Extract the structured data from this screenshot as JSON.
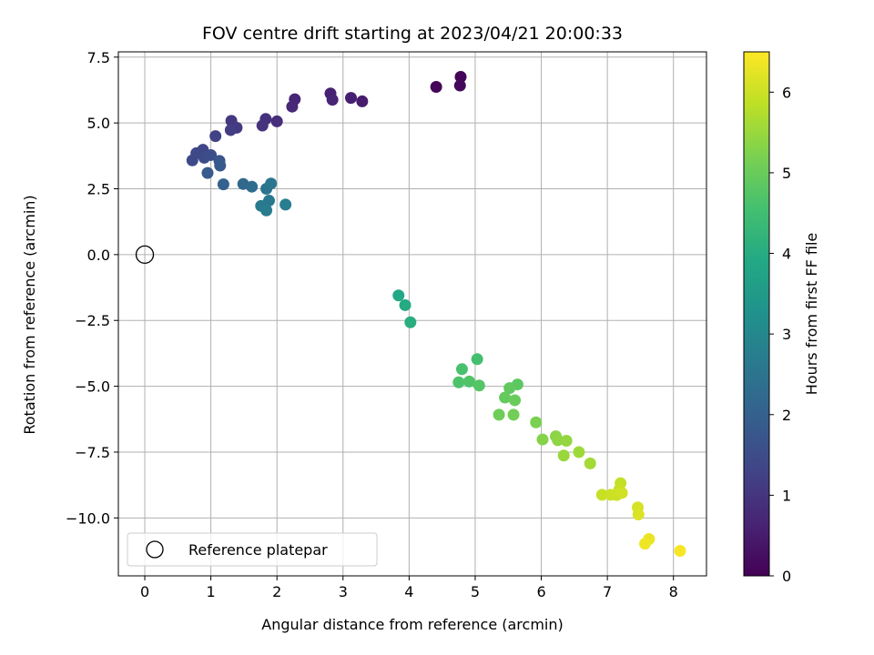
{
  "chart_data": {
    "type": "scatter",
    "title": "FOV centre drift starting at 2023/04/21 20:00:33",
    "xlabel": "Angular distance from reference (arcmin)",
    "ylabel": "Rotation from reference (arcmin)",
    "xlim": [
      -0.4,
      8.5
    ],
    "ylim": [
      -12.2,
      7.7
    ],
    "xticks": [
      0,
      1,
      2,
      3,
      4,
      5,
      6,
      7,
      8
    ],
    "yticks": [
      7.5,
      5.0,
      2.5,
      0.0,
      -2.5,
      -5.0,
      -7.5,
      -10.0
    ],
    "ytick_labels": [
      "7.5",
      "5.0",
      "2.5",
      "0.0",
      "−2.5",
      "−5.0",
      "−7.5",
      "−10.0"
    ],
    "grid": true,
    "colormap": "viridis",
    "colorbar": {
      "label": "Hours from first FF file",
      "range": [
        0,
        6.5
      ],
      "ticks": [
        0,
        1,
        2,
        3,
        4,
        5,
        6
      ]
    },
    "legend": {
      "location": "lower-left",
      "entries": [
        "Reference platepar"
      ]
    },
    "reference_point": {
      "x": 0,
      "y": 0
    },
    "points": [
      {
        "x": 4.78,
        "y": 6.75,
        "c": 0.05
      },
      {
        "x": 4.41,
        "y": 6.37,
        "c": 0.1
      },
      {
        "x": 4.77,
        "y": 6.42,
        "c": 0.15
      },
      {
        "x": 3.29,
        "y": 5.82,
        "c": 0.5
      },
      {
        "x": 3.12,
        "y": 5.95,
        "c": 0.55
      },
      {
        "x": 2.81,
        "y": 6.12,
        "c": 0.6
      },
      {
        "x": 2.84,
        "y": 5.88,
        "c": 0.65
      },
      {
        "x": 2.27,
        "y": 5.9,
        "c": 0.7
      },
      {
        "x": 2.23,
        "y": 5.62,
        "c": 0.75
      },
      {
        "x": 2.0,
        "y": 5.06,
        "c": 0.85
      },
      {
        "x": 1.83,
        "y": 5.15,
        "c": 0.9
      },
      {
        "x": 1.78,
        "y": 4.9,
        "c": 0.95
      },
      {
        "x": 1.31,
        "y": 5.08,
        "c": 1.05
      },
      {
        "x": 1.39,
        "y": 4.82,
        "c": 1.1
      },
      {
        "x": 1.3,
        "y": 4.73,
        "c": 1.15
      },
      {
        "x": 1.07,
        "y": 4.5,
        "c": 1.25
      },
      {
        "x": 0.88,
        "y": 3.98,
        "c": 1.35
      },
      {
        "x": 0.78,
        "y": 3.85,
        "c": 1.4
      },
      {
        "x": 0.72,
        "y": 3.58,
        "c": 1.45
      },
      {
        "x": 0.9,
        "y": 3.68,
        "c": 1.5
      },
      {
        "x": 1.0,
        "y": 3.78,
        "c": 1.55
      },
      {
        "x": 1.13,
        "y": 3.56,
        "c": 1.7
      },
      {
        "x": 1.14,
        "y": 3.38,
        "c": 1.8
      },
      {
        "x": 0.95,
        "y": 3.1,
        "c": 1.85
      },
      {
        "x": 1.19,
        "y": 2.67,
        "c": 2.0
      },
      {
        "x": 1.49,
        "y": 2.68,
        "c": 2.2
      },
      {
        "x": 1.62,
        "y": 2.58,
        "c": 2.3
      },
      {
        "x": 1.84,
        "y": 2.5,
        "c": 2.5
      },
      {
        "x": 1.91,
        "y": 2.7,
        "c": 2.55
      },
      {
        "x": 1.88,
        "y": 2.05,
        "c": 2.6
      },
      {
        "x": 1.76,
        "y": 1.85,
        "c": 2.65
      },
      {
        "x": 1.84,
        "y": 1.68,
        "c": 2.7
      },
      {
        "x": 2.13,
        "y": 1.9,
        "c": 2.75
      },
      {
        "x": 3.84,
        "y": -1.55,
        "c": 3.9
      },
      {
        "x": 3.94,
        "y": -1.92,
        "c": 3.95
      },
      {
        "x": 4.02,
        "y": -2.57,
        "c": 4.05
      },
      {
        "x": 5.03,
        "y": -3.97,
        "c": 4.55
      },
      {
        "x": 4.8,
        "y": -4.35,
        "c": 4.6
      },
      {
        "x": 4.75,
        "y": -4.85,
        "c": 4.65
      },
      {
        "x": 4.91,
        "y": -4.82,
        "c": 4.7
      },
      {
        "x": 5.06,
        "y": -4.97,
        "c": 4.75
      },
      {
        "x": 5.64,
        "y": -4.93,
        "c": 4.85
      },
      {
        "x": 5.52,
        "y": -5.07,
        "c": 4.9
      },
      {
        "x": 5.45,
        "y": -5.43,
        "c": 4.95
      },
      {
        "x": 5.6,
        "y": -5.53,
        "c": 5.0
      },
      {
        "x": 5.36,
        "y": -6.08,
        "c": 5.05
      },
      {
        "x": 5.58,
        "y": -6.08,
        "c": 5.1
      },
      {
        "x": 5.92,
        "y": -6.37,
        "c": 5.2
      },
      {
        "x": 6.02,
        "y": -7.02,
        "c": 5.3
      },
      {
        "x": 6.22,
        "y": -6.9,
        "c": 5.35
      },
      {
        "x": 6.25,
        "y": -7.05,
        "c": 5.4
      },
      {
        "x": 6.38,
        "y": -7.07,
        "c": 5.45
      },
      {
        "x": 6.34,
        "y": -7.63,
        "c": 5.5
      },
      {
        "x": 6.57,
        "y": -7.5,
        "c": 5.55
      },
      {
        "x": 6.74,
        "y": -7.93,
        "c": 5.6
      },
      {
        "x": 7.2,
        "y": -8.68,
        "c": 5.9
      },
      {
        "x": 7.18,
        "y": -8.93,
        "c": 5.95
      },
      {
        "x": 6.92,
        "y": -9.12,
        "c": 5.95
      },
      {
        "x": 7.05,
        "y": -9.12,
        "c": 6.0
      },
      {
        "x": 7.14,
        "y": -9.13,
        "c": 6.0
      },
      {
        "x": 7.22,
        "y": -9.05,
        "c": 6.05
      },
      {
        "x": 7.46,
        "y": -9.6,
        "c": 6.1
      },
      {
        "x": 7.47,
        "y": -9.87,
        "c": 6.15
      },
      {
        "x": 7.63,
        "y": -10.8,
        "c": 6.3
      },
      {
        "x": 7.57,
        "y": -10.98,
        "c": 6.35
      },
      {
        "x": 8.1,
        "y": -11.25,
        "c": 6.45
      }
    ]
  }
}
